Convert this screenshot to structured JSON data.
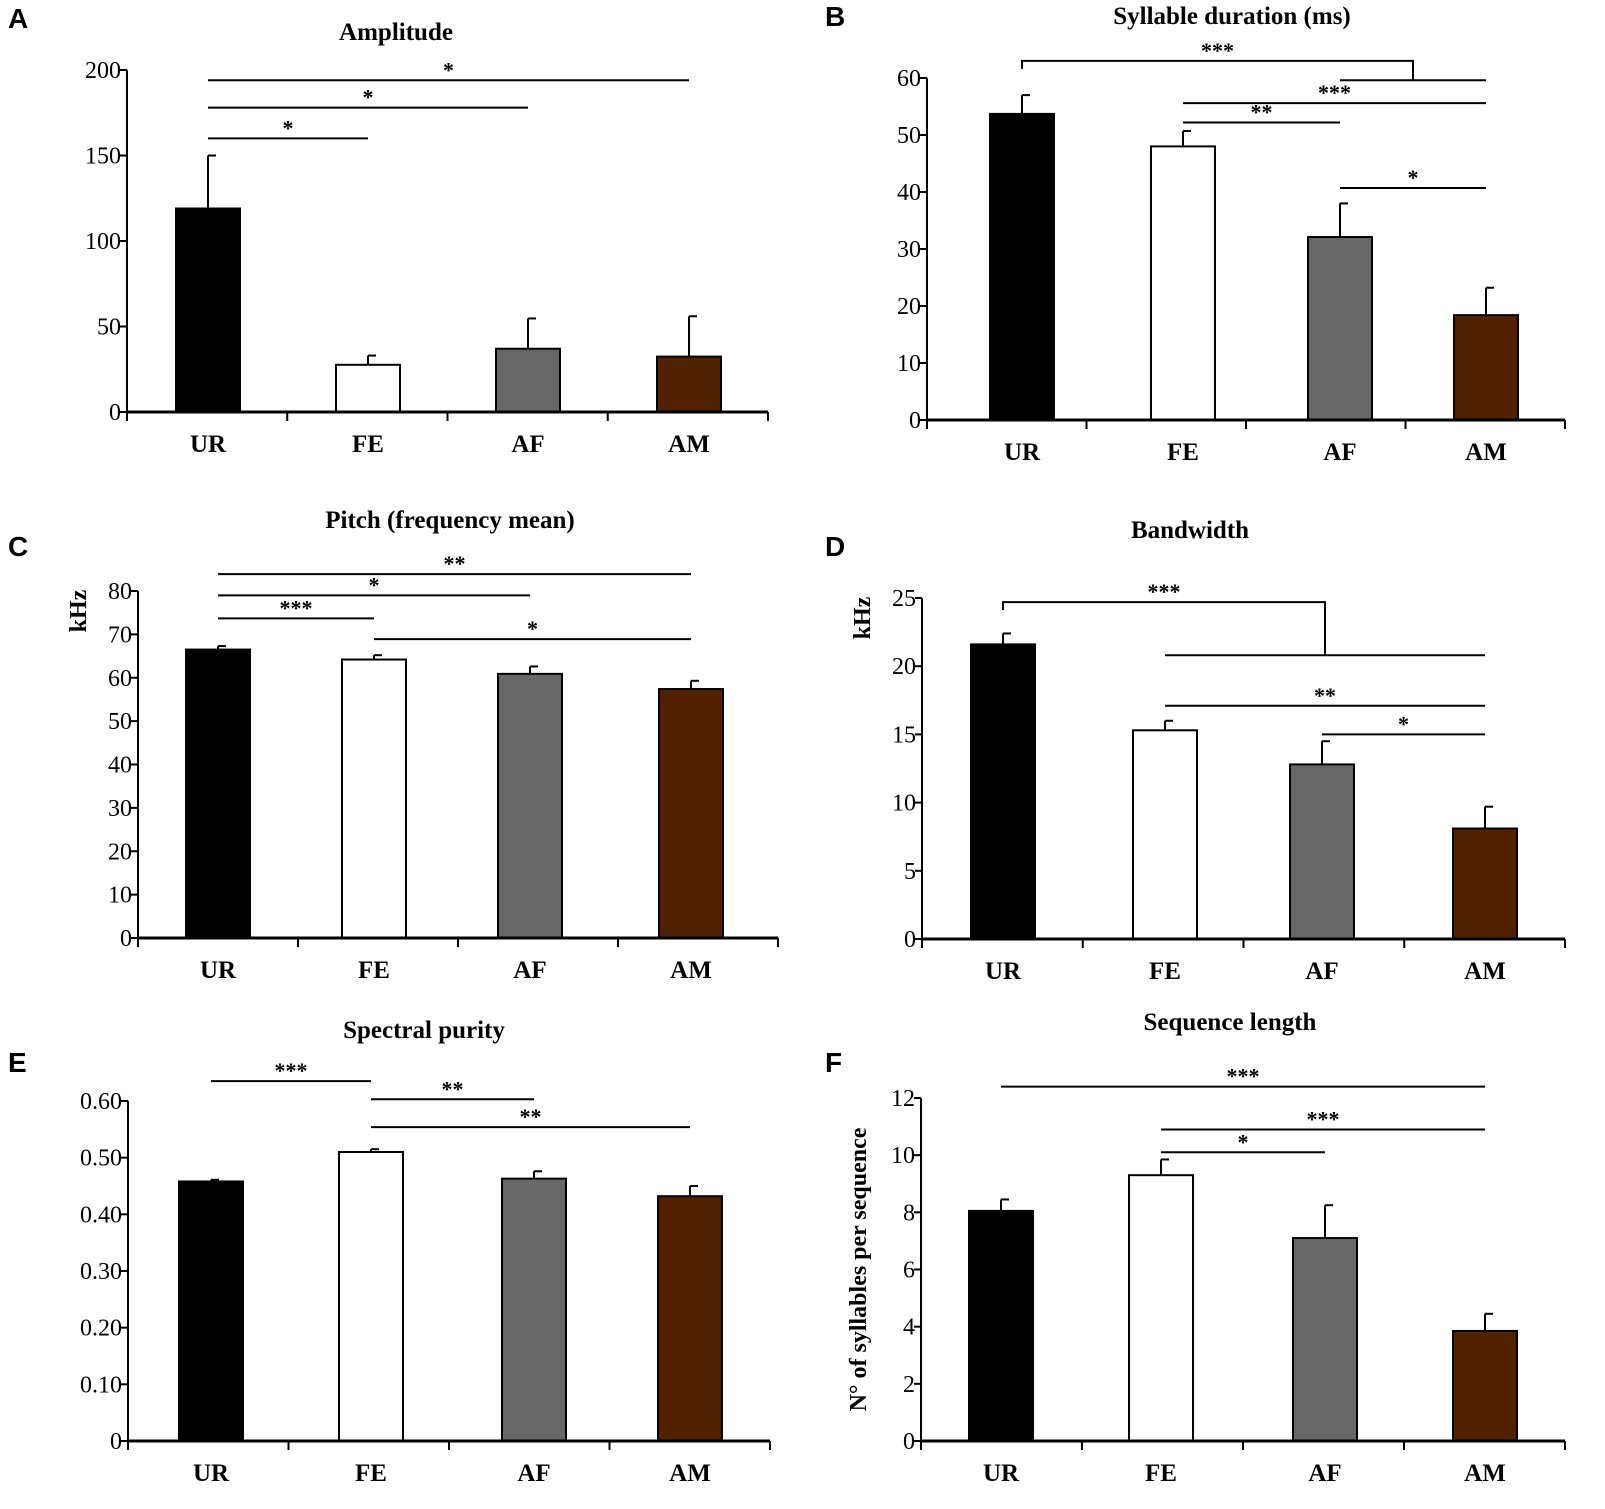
{
  "colors": {
    "UR": "#000000",
    "FE": "#ffffff",
    "AF": "#676767",
    "AM": "#522200",
    "axis": "#000000"
  },
  "chart_data": [
    {
      "panel": "A",
      "type": "bar",
      "title": "Amplitude",
      "ylabel": "",
      "categories": [
        "UR",
        "FE",
        "AF",
        "AM"
      ],
      "values": [
        119,
        27.6,
        37,
        32.4
      ],
      "error_upper": [
        150,
        33,
        54.7,
        56
      ],
      "ylim": [
        0,
        200
      ],
      "yticks": [
        0,
        50,
        100,
        150,
        200
      ],
      "ytick_labels": [
        "0",
        "50",
        "100",
        "150",
        "200"
      ],
      "significance": [
        {
          "from": 0,
          "to": 1,
          "y": 160,
          "label": "*"
        },
        {
          "from": 0,
          "to": 2,
          "y": 178,
          "label": "*"
        },
        {
          "from": 0,
          "to": 3,
          "y": 194,
          "label": "*"
        }
      ]
    },
    {
      "panel": "B",
      "type": "bar",
      "title": "Syllable duration (ms)",
      "ylabel": "",
      "categories": [
        "UR",
        "FE",
        "AF",
        "AM"
      ],
      "values": [
        53.7,
        48,
        32.1,
        18.4
      ],
      "error_upper": [
        57,
        50.7,
        38,
        23.2
      ],
      "ylim": [
        0,
        60
      ],
      "yticks": [
        0,
        10,
        20,
        30,
        40,
        50,
        60
      ],
      "ytick_labels": [
        "0",
        "10",
        "20",
        "30",
        "40",
        "50",
        "60"
      ],
      "significance": [
        {
          "from": 0,
          "to_group": [
            2,
            3
          ],
          "y": 63,
          "group_y": 59.6,
          "label": "***"
        },
        {
          "from": 1,
          "to": 3,
          "y": 55.6,
          "label": "***"
        },
        {
          "from": 1,
          "to": 2,
          "y": 52.2,
          "label": "**"
        },
        {
          "from": 2,
          "to": 3,
          "y": 40.7,
          "label": "*"
        }
      ]
    },
    {
      "panel": "C",
      "type": "bar",
      "title": "Pitch (frequency mean)",
      "ylabel": "kHz",
      "categories": [
        "UR",
        "FE",
        "AF",
        "AM"
      ],
      "values": [
        66.5,
        64.2,
        60.9,
        57.4
      ],
      "error_upper": [
        67.3,
        65.2,
        62.6,
        59.3
      ],
      "ylim": [
        0,
        80
      ],
      "yticks": [
        0,
        10,
        20,
        30,
        40,
        50,
        60,
        70,
        80
      ],
      "ytick_labels": [
        "0",
        "10",
        "20",
        "30",
        "40",
        "50",
        "60",
        "70",
        "80"
      ],
      "significance": [
        {
          "from": 0,
          "to": 3,
          "y": 83.9,
          "label": "**"
        },
        {
          "from": 0,
          "to": 2,
          "y": 79,
          "label": "*"
        },
        {
          "from": 0,
          "to": 1,
          "y": 73.7,
          "label": "***"
        },
        {
          "from": 1,
          "to": 3,
          "y": 68.9,
          "label": "*"
        }
      ]
    },
    {
      "panel": "D",
      "type": "bar",
      "title": "Bandwidth",
      "ylabel": "kHz",
      "categories": [
        "UR",
        "FE",
        "AF",
        "AM"
      ],
      "values": [
        21.6,
        15.3,
        12.8,
        8.1
      ],
      "error_upper": [
        22.4,
        16.0,
        14.5,
        9.7
      ],
      "ylim": [
        0,
        25
      ],
      "yticks": [
        0,
        5,
        10,
        15,
        20,
        25
      ],
      "ytick_labels": [
        "0",
        "5",
        "10",
        "15",
        "20",
        "25"
      ],
      "significance": [
        {
          "from": 0,
          "to_group": [
            1,
            3
          ],
          "y": 24.7,
          "group_y": 20.8,
          "label": "***"
        },
        {
          "from": 1,
          "to": 3,
          "y": 17.1,
          "label": "**"
        },
        {
          "from": 2,
          "to": 3,
          "y": 15.0,
          "label": "*"
        }
      ]
    },
    {
      "panel": "E",
      "type": "bar",
      "title": "Spectral purity",
      "ylabel": "",
      "categories": [
        "UR",
        "FE",
        "AF",
        "AM"
      ],
      "values": [
        0.458,
        0.51,
        0.463,
        0.432
      ],
      "error_upper": [
        0.461,
        0.515,
        0.476,
        0.45
      ],
      "ylim": [
        0,
        0.6
      ],
      "yticks": [
        0,
        0.1,
        0.2,
        0.3,
        0.4,
        0.5,
        0.6
      ],
      "ytick_labels": [
        "0",
        "0.10",
        "0.20",
        "0.30",
        "0.40",
        "0.50",
        "0.60"
      ],
      "significance": [
        {
          "from": 0,
          "to": 1,
          "y": 0.635,
          "label": "***"
        },
        {
          "from": 1,
          "to": 2,
          "y": 0.603,
          "label": "**"
        },
        {
          "from": 1,
          "to": 3,
          "y": 0.554,
          "label": "**"
        }
      ]
    },
    {
      "panel": "F",
      "type": "bar",
      "title": "Sequence length",
      "ylabel": "N° of syllables per sequence",
      "categories": [
        "UR",
        "FE",
        "AF",
        "AM"
      ],
      "values": [
        8.05,
        9.3,
        7.1,
        3.85
      ],
      "error_upper": [
        8.45,
        9.85,
        8.25,
        4.45
      ],
      "ylim": [
        0,
        12
      ],
      "yticks": [
        0,
        2,
        4,
        6,
        8,
        10,
        12
      ],
      "ytick_labels": [
        "0",
        "2",
        "4",
        "6",
        "8",
        "10",
        "12"
      ],
      "significance": [
        {
          "from": 0,
          "to": 3,
          "y": 12.4,
          "label": "***"
        },
        {
          "from": 1,
          "to": 3,
          "y": 10.9,
          "label": "***"
        },
        {
          "from": 1,
          "to": 2,
          "y": 10.1,
          "label": "*"
        }
      ]
    }
  ]
}
